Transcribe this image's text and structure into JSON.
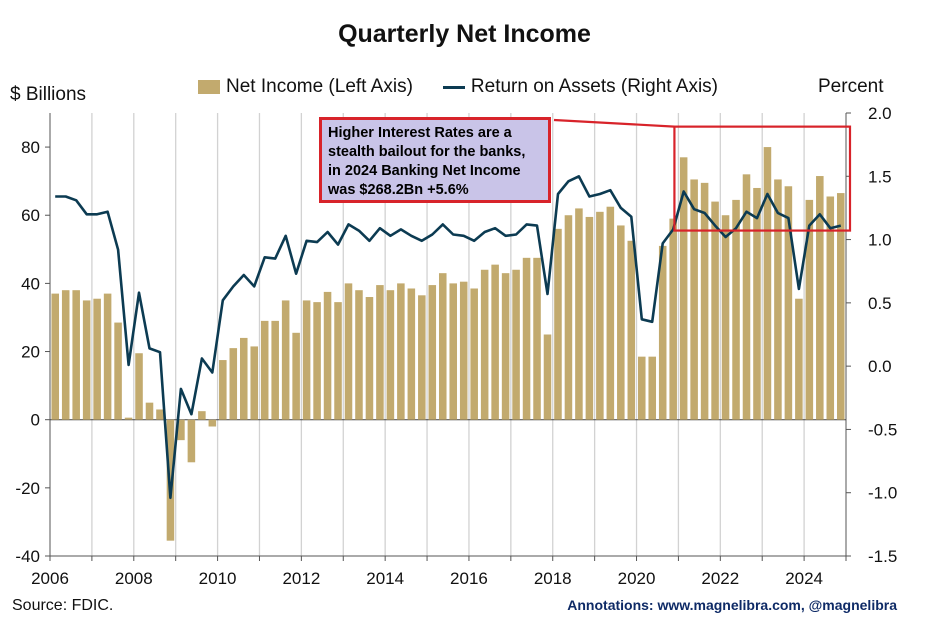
{
  "title": "Quarterly Net Income",
  "legend": {
    "bars": "Net Income (Left Axis)",
    "line": "Return on Assets (Right Axis)"
  },
  "source": "Source: FDIC.",
  "credit": "Annotations: www.magnelibra.com, @magnelibra",
  "annotation": "Higher Interest Rates are a stealth bailout for the banks, in 2024 Banking Net Income was $268.2Bn +5.6%",
  "colors": {
    "bars": "#c2aa6e",
    "line": "#0c3b52",
    "annotation_border": "#d8232a",
    "annotation_fill": "#c9c4e8"
  },
  "chart_data": {
    "type": "bar",
    "title": "Quarterly Net Income",
    "ylabel": "$ Billions",
    "y2label": "Percent",
    "xlim": [
      2006,
      2025
    ],
    "ylim": [
      -40,
      90
    ],
    "y2lim": [
      -1.5,
      2.0
    ],
    "x_ticks": [
      "2006",
      "2008",
      "2010",
      "2012",
      "2014",
      "2016",
      "2018",
      "2020",
      "2022",
      "2024"
    ],
    "y_ticks": [
      -40,
      -20,
      0,
      20,
      40,
      60,
      80
    ],
    "y2_ticks": [
      "-1.5",
      "-1.0",
      "-0.5",
      "0.0",
      "0.5",
      "1.0",
      "1.5",
      "2.0"
    ],
    "quarters_start": 2006.0,
    "series": [
      {
        "name": "Net Income (Left Axis)",
        "type": "bar",
        "values": [
          37,
          38,
          38,
          35,
          35.5,
          37,
          28.5,
          0.6,
          19.5,
          5,
          3,
          -35.5,
          -6,
          -12.5,
          2.5,
          -2,
          17.5,
          21,
          24,
          21.5,
          29,
          29,
          35,
          25.5,
          35,
          34.5,
          37.5,
          34.5,
          40,
          38,
          36,
          39.5,
          38,
          40,
          38.5,
          36.5,
          39.5,
          43,
          40,
          40.5,
          38.5,
          44,
          45.5,
          43,
          44,
          47.5,
          47.5,
          25,
          56,
          60,
          62,
          59.5,
          61,
          62.5,
          57,
          52.5,
          18.5,
          18.5,
          51,
          59,
          77,
          70.5,
          69.5,
          64,
          60,
          64.5,
          72,
          68,
          80,
          70.5,
          68.5,
          35.5,
          64.5,
          71.5,
          65.5,
          66.5
        ]
      },
      {
        "name": "Return on Assets (Right Axis)",
        "type": "line",
        "values": [
          1.34,
          1.34,
          1.31,
          1.2,
          1.2,
          1.22,
          0.92,
          0.01,
          0.58,
          0.14,
          0.11,
          -1.04,
          -0.18,
          -0.38,
          0.06,
          -0.05,
          0.52,
          0.63,
          0.72,
          0.63,
          0.86,
          0.85,
          1.03,
          0.73,
          0.99,
          0.98,
          1.06,
          0.96,
          1.12,
          1.07,
          0.99,
          1.09,
          1.03,
          1.08,
          1.03,
          0.99,
          1.04,
          1.12,
          1.04,
          1.03,
          0.99,
          1.06,
          1.09,
          1.03,
          1.04,
          1.12,
          1.11,
          0.57,
          1.36,
          1.46,
          1.5,
          1.34,
          1.36,
          1.39,
          1.25,
          1.18,
          0.37,
          0.35,
          0.97,
          1.08,
          1.38,
          1.24,
          1.21,
          1.11,
          1.02,
          1.09,
          1.22,
          1.17,
          1.36,
          1.21,
          1.17,
          0.61,
          1.11,
          1.2,
          1.09,
          1.11
        ]
      }
    ]
  }
}
